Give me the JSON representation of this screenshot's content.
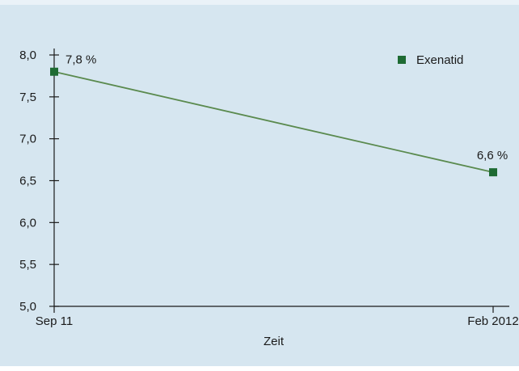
{
  "chart_data": {
    "type": "line",
    "title": "",
    "xlabel": "Zeit",
    "ylabel": "",
    "categories": [
      "Sep 11",
      "Feb 2012"
    ],
    "ylim": [
      5.0,
      8.0
    ],
    "yticks": [
      "5,0",
      "5,5",
      "6,0",
      "6,5",
      "7,0",
      "7,5",
      "8,0"
    ],
    "series": [
      {
        "name": "Exenatid",
        "values": [
          7.8,
          6.6
        ],
        "labels": [
          "7,8 %",
          "6,6 %"
        ],
        "color": "#1e6b33",
        "line_color": "#5a8a4e"
      }
    ],
    "legend_position": "top-right",
    "grid": false
  }
}
